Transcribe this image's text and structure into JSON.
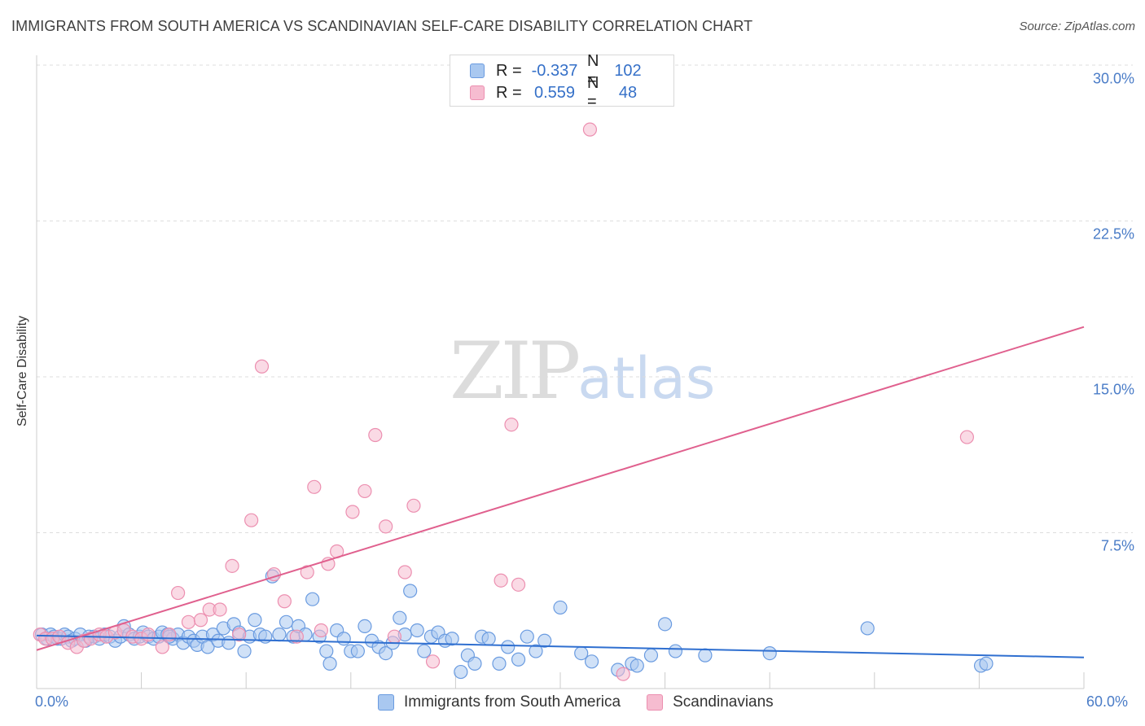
{
  "title": "IMMIGRANTS FROM SOUTH AMERICA VS SCANDINAVIAN SELF-CARE DISABILITY CORRELATION CHART",
  "source": "Source: ZipAtlas.com",
  "watermark": {
    "zip": "ZIP",
    "atlas": "atlas"
  },
  "colors": {
    "blue_fill": "#a9c8f0",
    "blue_stroke": "#6a9be0",
    "blue_line": "#2f6fd0",
    "pink_fill": "#f6bcd0",
    "pink_stroke": "#ec8fb0",
    "pink_line": "#e0608e",
    "grid": "#dddddd",
    "tick_text": "#4a7cc7"
  },
  "legend": {
    "rows": [
      {
        "r_label": "R =",
        "r_value": "-0.337",
        "n_label": "N =",
        "n_value": "102"
      },
      {
        "r_label": "R =",
        "r_value": "0.559",
        "n_label": "N =",
        "n_value": "48"
      }
    ]
  },
  "chart_data": {
    "type": "scatter",
    "title": "IMMIGRANTS FROM SOUTH AMERICA VS SCANDINAVIAN SELF-CARE DISABILITY CORRELATION CHART",
    "xlabel": "",
    "ylabel": "Self-Care Disability",
    "xlim": [
      0,
      60
    ],
    "ylim": [
      0,
      30
    ],
    "x_tick_labels": [
      "0.0%",
      "60.0%"
    ],
    "y_ticks": [
      7.5,
      15.0,
      22.5,
      30.0
    ],
    "y_tick_labels": [
      "7.5%",
      "15.0%",
      "22.5%",
      "30.0%"
    ],
    "grid": true,
    "series": [
      {
        "name": "Immigrants from South America",
        "color": "#a9c8f0",
        "trend": {
          "x": [
            0,
            60
          ],
          "y": [
            2.55,
            1.5
          ]
        },
        "points": [
          [
            0.3,
            2.6
          ],
          [
            0.6,
            2.4
          ],
          [
            0.8,
            2.6
          ],
          [
            1.0,
            2.5
          ],
          [
            1.2,
            2.4
          ],
          [
            1.4,
            2.4
          ],
          [
            1.6,
            2.6
          ],
          [
            1.8,
            2.5
          ],
          [
            2.0,
            2.3
          ],
          [
            2.2,
            2.4
          ],
          [
            2.5,
            2.6
          ],
          [
            2.8,
            2.3
          ],
          [
            3.0,
            2.5
          ],
          [
            3.3,
            2.5
          ],
          [
            3.6,
            2.4
          ],
          [
            3.9,
            2.6
          ],
          [
            4.2,
            2.5
          ],
          [
            4.5,
            2.3
          ],
          [
            4.8,
            2.5
          ],
          [
            5.0,
            3.0
          ],
          [
            5.3,
            2.6
          ],
          [
            5.6,
            2.4
          ],
          [
            5.9,
            2.5
          ],
          [
            6.1,
            2.7
          ],
          [
            6.4,
            2.5
          ],
          [
            6.7,
            2.4
          ],
          [
            7.0,
            2.5
          ],
          [
            7.2,
            2.7
          ],
          [
            7.5,
            2.6
          ],
          [
            7.8,
            2.4
          ],
          [
            8.1,
            2.6
          ],
          [
            8.4,
            2.2
          ],
          [
            8.7,
            2.5
          ],
          [
            9.0,
            2.3
          ],
          [
            9.2,
            2.1
          ],
          [
            9.5,
            2.5
          ],
          [
            9.8,
            2.0
          ],
          [
            10.1,
            2.6
          ],
          [
            10.4,
            2.3
          ],
          [
            10.7,
            2.9
          ],
          [
            11.0,
            2.2
          ],
          [
            11.3,
            3.1
          ],
          [
            11.6,
            2.7
          ],
          [
            11.9,
            1.8
          ],
          [
            12.2,
            2.5
          ],
          [
            12.5,
            3.3
          ],
          [
            12.8,
            2.6
          ],
          [
            13.1,
            2.5
          ],
          [
            13.5,
            5.4
          ],
          [
            13.9,
            2.6
          ],
          [
            14.3,
            3.2
          ],
          [
            14.7,
            2.5
          ],
          [
            15.0,
            3.0
          ],
          [
            15.4,
            2.6
          ],
          [
            15.8,
            4.3
          ],
          [
            16.2,
            2.5
          ],
          [
            16.6,
            1.8
          ],
          [
            16.8,
            1.2
          ],
          [
            17.2,
            2.8
          ],
          [
            17.6,
            2.4
          ],
          [
            18.0,
            1.8
          ],
          [
            18.4,
            1.8
          ],
          [
            18.8,
            3.0
          ],
          [
            19.2,
            2.3
          ],
          [
            19.6,
            2.0
          ],
          [
            20.0,
            1.7
          ],
          [
            20.4,
            2.2
          ],
          [
            20.8,
            3.4
          ],
          [
            21.1,
            2.6
          ],
          [
            21.4,
            4.7
          ],
          [
            21.8,
            2.8
          ],
          [
            22.2,
            1.8
          ],
          [
            22.6,
            2.5
          ],
          [
            23.0,
            2.7
          ],
          [
            23.4,
            2.3
          ],
          [
            23.8,
            2.4
          ],
          [
            24.3,
            0.8
          ],
          [
            24.7,
            1.6
          ],
          [
            25.1,
            1.2
          ],
          [
            25.5,
            2.5
          ],
          [
            25.9,
            2.4
          ],
          [
            26.5,
            1.2
          ],
          [
            27.0,
            2.0
          ],
          [
            27.6,
            1.4
          ],
          [
            28.1,
            2.5
          ],
          [
            28.6,
            1.8
          ],
          [
            29.1,
            2.3
          ],
          [
            30.0,
            3.9
          ],
          [
            31.2,
            1.7
          ],
          [
            31.8,
            1.3
          ],
          [
            33.3,
            0.9
          ],
          [
            34.1,
            1.2
          ],
          [
            34.4,
            1.1
          ],
          [
            35.2,
            1.6
          ],
          [
            36.0,
            3.1
          ],
          [
            36.6,
            1.8
          ],
          [
            38.3,
            1.6
          ],
          [
            42.0,
            1.7
          ],
          [
            47.6,
            2.9
          ],
          [
            54.1,
            1.1
          ],
          [
            54.4,
            1.2
          ],
          [
            7.6,
            2.5
          ]
        ]
      },
      {
        "name": "Scandinavians",
        "color": "#f6bcd0",
        "trend": {
          "x": [
            0,
            60
          ],
          "y": [
            1.85,
            17.4
          ]
        },
        "points": [
          [
            0.2,
            2.6
          ],
          [
            0.5,
            2.4
          ],
          [
            0.9,
            2.4
          ],
          [
            1.3,
            2.5
          ],
          [
            1.8,
            2.2
          ],
          [
            2.3,
            2.0
          ],
          [
            2.7,
            2.3
          ],
          [
            3.1,
            2.4
          ],
          [
            3.6,
            2.6
          ],
          [
            4.0,
            2.5
          ],
          [
            4.5,
            2.7
          ],
          [
            5.0,
            2.8
          ],
          [
            5.5,
            2.5
          ],
          [
            6.0,
            2.4
          ],
          [
            6.4,
            2.6
          ],
          [
            7.2,
            2.0
          ],
          [
            7.6,
            2.6
          ],
          [
            8.1,
            4.6
          ],
          [
            8.7,
            3.2
          ],
          [
            9.4,
            3.3
          ],
          [
            9.9,
            3.8
          ],
          [
            10.5,
            3.8
          ],
          [
            11.2,
            5.9
          ],
          [
            11.6,
            2.6
          ],
          [
            12.3,
            8.1
          ],
          [
            12.9,
            15.5
          ],
          [
            13.6,
            5.5
          ],
          [
            14.2,
            4.2
          ],
          [
            14.9,
            2.5
          ],
          [
            15.5,
            5.6
          ],
          [
            15.9,
            9.7
          ],
          [
            16.3,
            2.8
          ],
          [
            16.7,
            6.0
          ],
          [
            17.2,
            6.6
          ],
          [
            18.1,
            8.5
          ],
          [
            18.8,
            9.5
          ],
          [
            19.4,
            12.2
          ],
          [
            20.0,
            7.8
          ],
          [
            21.1,
            5.6
          ],
          [
            21.6,
            8.8
          ],
          [
            22.7,
            1.3
          ],
          [
            26.6,
            5.2
          ],
          [
            27.2,
            12.7
          ],
          [
            27.6,
            5.0
          ],
          [
            31.7,
            26.9
          ],
          [
            33.6,
            0.7
          ],
          [
            53.3,
            12.1
          ],
          [
            20.5,
            2.5
          ]
        ]
      }
    ]
  },
  "bottom_legend": [
    {
      "label": "Immigrants from South America"
    },
    {
      "label": "Scandinavians"
    }
  ]
}
